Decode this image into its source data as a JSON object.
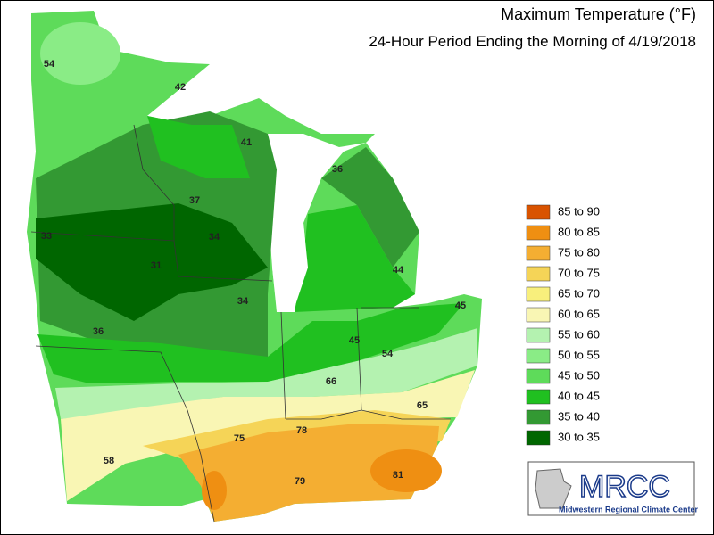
{
  "title": "Maximum Temperature (°F)",
  "subtitle": "24-Hour Period Ending the Morning of 4/19/2018",
  "legend": [
    {
      "label": "85 to 90",
      "color": "#d95300"
    },
    {
      "label": "80 to 85",
      "color": "#ef8f12"
    },
    {
      "label": "75 to 80",
      "color": "#f4ae32"
    },
    {
      "label": "70 to 75",
      "color": "#f5d457"
    },
    {
      "label": "65 to 70",
      "color": "#f8ef7c"
    },
    {
      "label": "60 to 65",
      "color": "#f9f6b4"
    },
    {
      "label": "55 to 60",
      "color": "#b4f2b0"
    },
    {
      "label": "50 to 55",
      "color": "#8aec86"
    },
    {
      "label": "45 to 50",
      "color": "#5edb5a"
    },
    {
      "label": "40 to 45",
      "color": "#20c020"
    },
    {
      "label": "35 to 40",
      "color": "#339933"
    },
    {
      "label": "30 to 35",
      "color": "#006600"
    }
  ],
  "stations": [
    54,
    42,
    41,
    36,
    37,
    33,
    34,
    31,
    34,
    44,
    45,
    36,
    45,
    54,
    66,
    65,
    75,
    78,
    58,
    79,
    81
  ],
  "logo": {
    "name": "MRCC",
    "full_name": "Midwestern Regional Climate Center"
  }
}
